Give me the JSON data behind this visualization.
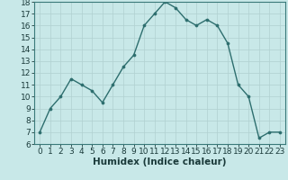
{
  "x": [
    0,
    1,
    2,
    3,
    4,
    5,
    6,
    7,
    8,
    9,
    10,
    11,
    12,
    13,
    14,
    15,
    16,
    17,
    18,
    19,
    20,
    21,
    22,
    23
  ],
  "y": [
    7,
    9,
    10,
    11.5,
    11,
    10.5,
    9.5,
    11,
    12.5,
    13.5,
    16,
    17,
    18,
    17.5,
    16.5,
    16,
    16.5,
    16,
    14.5,
    11,
    10,
    6.5,
    7,
    7
  ],
  "line_color": "#2d6e6e",
  "marker_color": "#2d6e6e",
  "bg_color": "#c8e8e8",
  "grid_color": "#b0d0d0",
  "xlabel": "Humidex (Indice chaleur)",
  "xlim": [
    -0.5,
    23.5
  ],
  "ylim": [
    6,
    18
  ],
  "yticks": [
    6,
    7,
    8,
    9,
    10,
    11,
    12,
    13,
    14,
    15,
    16,
    17,
    18
  ],
  "xticks": [
    0,
    1,
    2,
    3,
    4,
    5,
    6,
    7,
    8,
    9,
    10,
    11,
    12,
    13,
    14,
    15,
    16,
    17,
    18,
    19,
    20,
    21,
    22,
    23
  ],
  "xlabel_fontsize": 7.5,
  "tick_fontsize": 6.5
}
